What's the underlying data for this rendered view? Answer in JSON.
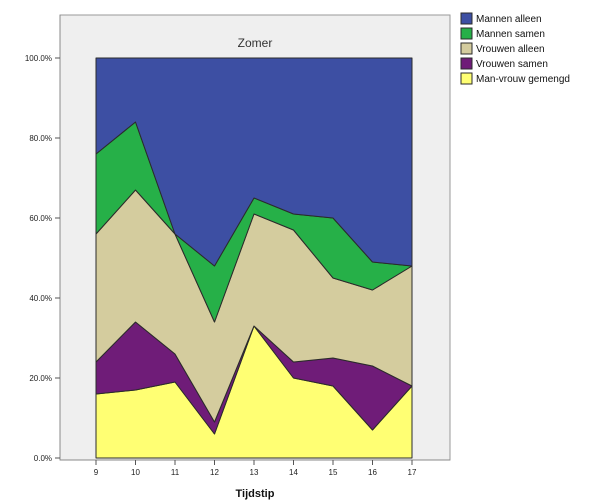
{
  "chart_data": {
    "type": "area",
    "stacked": true,
    "panel_title": "Zomer",
    "xlabel": "Tijdstip",
    "ylabel": "",
    "x": [
      9,
      10,
      11,
      12,
      13,
      14,
      15,
      16,
      17
    ],
    "ylim": [
      0,
      100
    ],
    "yticks": [
      "0.0%",
      "20.0%",
      "40.0%",
      "60.0%",
      "80.0%",
      "100.0%"
    ],
    "legend_position": "top-right",
    "series": [
      {
        "name": "Man-vrouw gemengd",
        "color": "#ffff73",
        "values": [
          16,
          17,
          19,
          6,
          33,
          20,
          18,
          7,
          18
        ]
      },
      {
        "name": "Vrouwen samen",
        "color": "#6f1c78",
        "values": [
          8,
          17,
          7,
          3,
          0,
          4,
          7,
          16,
          0
        ]
      },
      {
        "name": "Vrouwen alleen",
        "color": "#d4cc9e",
        "values": [
          32,
          33,
          30,
          25,
          28,
          33,
          20,
          19,
          30
        ]
      },
      {
        "name": "Mannen samen",
        "color": "#26b048",
        "values": [
          20,
          17,
          0,
          14,
          4,
          4,
          15,
          7,
          0
        ]
      },
      {
        "name": "Mannen alleen",
        "color": "#3d4fa3",
        "values": [
          24,
          16,
          44,
          52,
          35,
          39,
          40,
          51,
          52
        ]
      }
    ],
    "legend_order": [
      "Mannen alleen",
      "Mannen samen",
      "Vrouwen alleen",
      "Vrouwen samen",
      "Man-vrouw gemengd"
    ]
  }
}
